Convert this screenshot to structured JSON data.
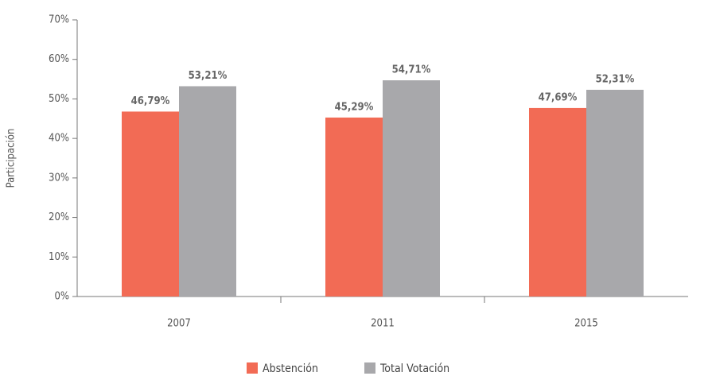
{
  "chart_data": {
    "type": "bar",
    "y_label": "Participación",
    "categories": [
      "2007",
      "2011",
      "2015"
    ],
    "series": [
      {
        "name": "Abstención",
        "color": "#f26b55",
        "values": [
          46.79,
          45.29,
          47.69
        ],
        "value_labels": [
          "46,79%",
          "45,29%",
          "47,69%"
        ]
      },
      {
        "name": "Total Votación",
        "color": "#a8a8ab",
        "values": [
          53.21,
          54.71,
          52.31
        ],
        "value_labels": [
          "53,21%",
          "54,71%",
          "52,31%"
        ]
      }
    ],
    "ylim": [
      0,
      70
    ],
    "yticks": [
      {
        "value": 0,
        "label": "0%"
      },
      {
        "value": 10,
        "label": "10%"
      },
      {
        "value": 20,
        "label": "20%"
      },
      {
        "value": 30,
        "label": "30%"
      },
      {
        "value": 40,
        "label": "40%"
      },
      {
        "value": 50,
        "label": "50%"
      },
      {
        "value": 60,
        "label": "60%"
      },
      {
        "value": 70,
        "label": "70%"
      }
    ],
    "grid": false,
    "legend": "bottom"
  }
}
